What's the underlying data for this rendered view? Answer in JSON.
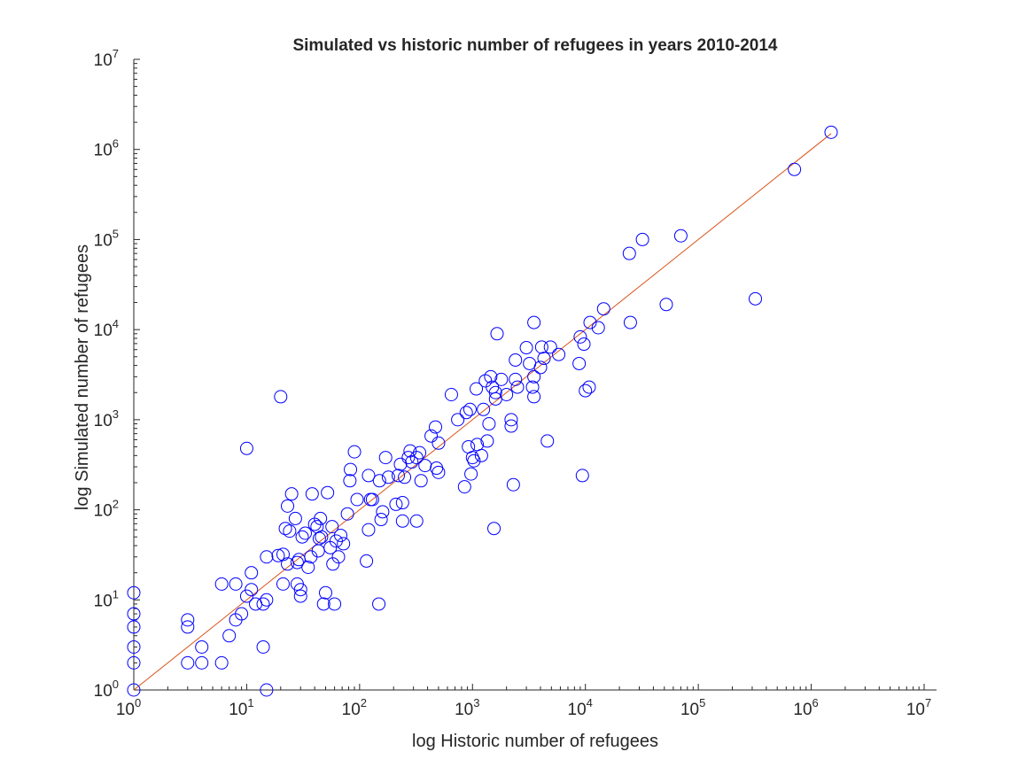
{
  "chart_data": {
    "type": "scatter",
    "title": "Simulated vs historic number of refugees in years 2010-2014",
    "xlabel": "log Historic number of refugees",
    "ylabel": "log Simulated number of refugees",
    "xscale": "log",
    "yscale": "log",
    "xlim": [
      1,
      10000000
    ],
    "ylim": [
      1,
      10000000
    ],
    "grid": false,
    "tick_base": "10",
    "tick_exponents": [
      "0",
      "1",
      "2",
      "3",
      "4",
      "5",
      "6",
      "7"
    ],
    "colors": {
      "marker": "#0000ff",
      "fit_line": "#d95319",
      "axes": "#262626"
    },
    "fit_line": {
      "x": [
        1,
        1500000
      ],
      "y": [
        1,
        1500000
      ]
    },
    "series": [
      {
        "marker": "circle",
        "points": [
          [
            1,
            1
          ],
          [
            1,
            2
          ],
          [
            1,
            3
          ],
          [
            1,
            5
          ],
          [
            1,
            7
          ],
          [
            1,
            12
          ],
          [
            3,
            2
          ],
          [
            3,
            5
          ],
          [
            3,
            6
          ],
          [
            4,
            2
          ],
          [
            4,
            3
          ],
          [
            6,
            2
          ],
          [
            6,
            15
          ],
          [
            7,
            4
          ],
          [
            8,
            6
          ],
          [
            8,
            15
          ],
          [
            9,
            7
          ],
          [
            10,
            11
          ],
          [
            10,
            480
          ],
          [
            11,
            13
          ],
          [
            11,
            20
          ],
          [
            12,
            9
          ],
          [
            14,
            3
          ],
          [
            14,
            9
          ],
          [
            15,
            1
          ],
          [
            15,
            10
          ],
          [
            15,
            30
          ],
          [
            19,
            31
          ],
          [
            20,
            1800
          ],
          [
            21,
            15
          ],
          [
            21,
            32
          ],
          [
            22,
            62
          ],
          [
            23,
            25
          ],
          [
            23,
            110
          ],
          [
            24,
            58
          ],
          [
            25,
            150
          ],
          [
            27,
            80
          ],
          [
            28,
            15
          ],
          [
            28,
            26
          ],
          [
            29,
            28
          ],
          [
            30,
            11
          ],
          [
            30,
            13
          ],
          [
            31,
            50
          ],
          [
            33,
            55
          ],
          [
            35,
            23
          ],
          [
            37,
            30
          ],
          [
            38,
            150
          ],
          [
            40,
            69
          ],
          [
            42,
            65
          ],
          [
            43,
            35
          ],
          [
            44,
            48
          ],
          [
            45,
            80
          ],
          [
            46,
            50
          ],
          [
            48,
            9
          ],
          [
            50,
            12
          ],
          [
            52,
            155
          ],
          [
            55,
            38
          ],
          [
            57,
            65
          ],
          [
            58,
            25
          ],
          [
            60,
            9
          ],
          [
            62,
            45
          ],
          [
            65,
            30
          ],
          [
            68,
            52
          ],
          [
            72,
            42
          ],
          [
            78,
            90
          ],
          [
            82,
            210
          ],
          [
            83,
            280
          ],
          [
            90,
            440
          ],
          [
            95,
            130
          ],
          [
            115,
            27
          ],
          [
            120,
            60
          ],
          [
            120,
            240
          ],
          [
            125,
            130
          ],
          [
            130,
            130
          ],
          [
            148,
            9
          ],
          [
            150,
            210
          ],
          [
            155,
            78
          ],
          [
            160,
            95
          ],
          [
            170,
            380
          ],
          [
            180,
            230
          ],
          [
            210,
            115
          ],
          [
            220,
            240
          ],
          [
            230,
            320
          ],
          [
            240,
            120
          ],
          [
            240,
            75
          ],
          [
            250,
            230
          ],
          [
            270,
            380
          ],
          [
            280,
            450
          ],
          [
            290,
            340
          ],
          [
            320,
            75
          ],
          [
            320,
            380
          ],
          [
            340,
            430
          ],
          [
            350,
            210
          ],
          [
            380,
            310
          ],
          [
            430,
            660
          ],
          [
            470,
            830
          ],
          [
            480,
            290
          ],
          [
            500,
            550
          ],
          [
            500,
            260
          ],
          [
            650,
            1900
          ],
          [
            740,
            1000
          ],
          [
            850,
            180
          ],
          [
            880,
            1200
          ],
          [
            920,
            500
          ],
          [
            950,
            1300
          ],
          [
            970,
            250
          ],
          [
            1000,
            380
          ],
          [
            1030,
            350
          ],
          [
            1080,
            2200
          ],
          [
            1100,
            530
          ],
          [
            1200,
            400
          ],
          [
            1250,
            1300
          ],
          [
            1300,
            2700
          ],
          [
            1350,
            580
          ],
          [
            1400,
            900
          ],
          [
            1450,
            3000
          ],
          [
            1500,
            2300
          ],
          [
            1550,
            62
          ],
          [
            1600,
            2000
          ],
          [
            1600,
            1700
          ],
          [
            1650,
            9000
          ],
          [
            1800,
            2800
          ],
          [
            2000,
            1900
          ],
          [
            2200,
            850
          ],
          [
            2200,
            1000
          ],
          [
            2300,
            190
          ],
          [
            2400,
            4600
          ],
          [
            2400,
            2800
          ],
          [
            2500,
            2300
          ],
          [
            3000,
            6300
          ],
          [
            3200,
            4200
          ],
          [
            3400,
            2300
          ],
          [
            3500,
            3000
          ],
          [
            3500,
            12000
          ],
          [
            3500,
            1800
          ],
          [
            4000,
            3800
          ],
          [
            4100,
            6400
          ],
          [
            4300,
            4800
          ],
          [
            4600,
            580
          ],
          [
            4900,
            6400
          ],
          [
            5800,
            5300
          ],
          [
            8800,
            4200
          ],
          [
            9000,
            8300
          ],
          [
            9400,
            240
          ],
          [
            9700,
            6900
          ],
          [
            10000,
            2100
          ],
          [
            10800,
            2300
          ],
          [
            11000,
            12000
          ],
          [
            13000,
            10500
          ],
          [
            14500,
            17000
          ],
          [
            24500,
            70000
          ],
          [
            25000,
            12000
          ],
          [
            32000,
            100000
          ],
          [
            52000,
            19000
          ],
          [
            70000,
            110000
          ],
          [
            320000,
            22000
          ],
          [
            710000,
            600000
          ],
          [
            1500000,
            1550000
          ]
        ]
      }
    ]
  }
}
